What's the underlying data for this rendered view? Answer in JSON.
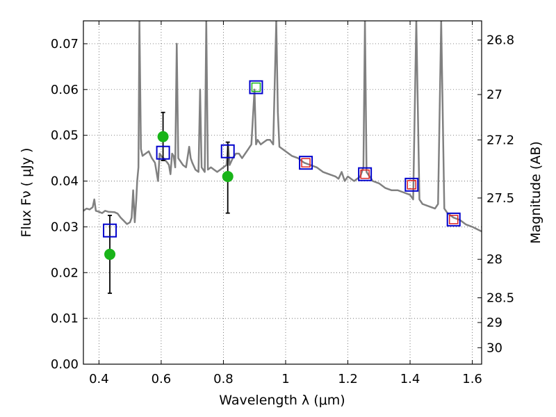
{
  "chart_data": {
    "type": "scatter",
    "xlabel": "Wavelength  λ (μm)",
    "ylabel": "Flux  Fν  ( μJy )",
    "ylabel_right": "Magnitude (AB)",
    "xlim": [
      0.35,
      1.63
    ],
    "ylim": [
      0.0,
      0.075
    ],
    "grid": true,
    "x_ticks": [
      0.4,
      0.6,
      0.8,
      1.0,
      1.2,
      1.4,
      1.6
    ],
    "x_tick_labels": [
      "0.4",
      "0.6",
      "0.8",
      "1",
      "1.2",
      "1.4",
      "1.6"
    ],
    "y_ticks": [
      0.0,
      0.01,
      0.02,
      0.03,
      0.04,
      0.05,
      0.06,
      0.07
    ],
    "y_tick_labels": [
      "0.00",
      "0.01",
      "0.02",
      "0.03",
      "0.04",
      "0.05",
      "0.06",
      "0.07"
    ],
    "mag_ticks": [
      {
        "label": "26.8",
        "flux": 0.0708
      },
      {
        "label": "27",
        "flux": 0.0589
      },
      {
        "label": "27.2",
        "flux": 0.049
      },
      {
        "label": "27.5",
        "flux": 0.0363
      },
      {
        "label": "28",
        "flux": 0.0229
      },
      {
        "label": "28.5",
        "flux": 0.0145
      },
      {
        "label": "29",
        "flux": 0.0091
      },
      {
        "label": "30",
        "flux": 0.0036
      }
    ],
    "series": [
      {
        "style": "line",
        "color": "#808080",
        "points": [
          [
            0.35,
            0.0335
          ],
          [
            0.36,
            0.034
          ],
          [
            0.37,
            0.0338
          ],
          [
            0.38,
            0.0343
          ],
          [
            0.385,
            0.036
          ],
          [
            0.39,
            0.0335
          ],
          [
            0.4,
            0.0333
          ],
          [
            0.41,
            0.033
          ],
          [
            0.42,
            0.0335
          ],
          [
            0.43,
            0.0333
          ],
          [
            0.45,
            0.0332
          ],
          [
            0.46,
            0.0329
          ],
          [
            0.47,
            0.032
          ],
          [
            0.48,
            0.0313
          ],
          [
            0.49,
            0.0306
          ],
          [
            0.5,
            0.031
          ],
          [
            0.505,
            0.032
          ],
          [
            0.51,
            0.038
          ],
          [
            0.515,
            0.031
          ],
          [
            0.52,
            0.036
          ],
          [
            0.523,
            0.04
          ],
          [
            0.527,
            0.043
          ],
          [
            0.53,
            0.076
          ],
          [
            0.535,
            0.047
          ],
          [
            0.54,
            0.0455
          ],
          [
            0.55,
            0.046
          ],
          [
            0.56,
            0.0465
          ],
          [
            0.57,
            0.045
          ],
          [
            0.58,
            0.044
          ],
          [
            0.585,
            0.042
          ],
          [
            0.59,
            0.04
          ],
          [
            0.595,
            0.046
          ],
          [
            0.6,
            0.0455
          ],
          [
            0.61,
            0.0448
          ],
          [
            0.62,
            0.044
          ],
          [
            0.625,
            0.0435
          ],
          [
            0.63,
            0.0415
          ],
          [
            0.635,
            0.046
          ],
          [
            0.64,
            0.0455
          ],
          [
            0.645,
            0.043
          ],
          [
            0.65,
            0.07
          ],
          [
            0.655,
            0.045
          ],
          [
            0.66,
            0.0445
          ],
          [
            0.67,
            0.0435
          ],
          [
            0.68,
            0.043
          ],
          [
            0.69,
            0.0475
          ],
          [
            0.695,
            0.045
          ],
          [
            0.7,
            0.044
          ],
          [
            0.71,
            0.0425
          ],
          [
            0.72,
            0.042
          ],
          [
            0.725,
            0.06
          ],
          [
            0.73,
            0.043
          ],
          [
            0.74,
            0.042
          ],
          [
            0.745,
            0.076
          ],
          [
            0.75,
            0.0425
          ],
          [
            0.76,
            0.043
          ],
          [
            0.77,
            0.0425
          ],
          [
            0.78,
            0.042
          ],
          [
            0.79,
            0.0425
          ],
          [
            0.8,
            0.043
          ],
          [
            0.81,
            0.0435
          ],
          [
            0.815,
            0.048
          ],
          [
            0.82,
            0.0435
          ],
          [
            0.83,
            0.045
          ],
          [
            0.84,
            0.046
          ],
          [
            0.85,
            0.046
          ],
          [
            0.86,
            0.045
          ],
          [
            0.87,
            0.046
          ],
          [
            0.88,
            0.047
          ],
          [
            0.89,
            0.048
          ],
          [
            0.9,
            0.06
          ],
          [
            0.905,
            0.048
          ],
          [
            0.91,
            0.049
          ],
          [
            0.92,
            0.048
          ],
          [
            0.93,
            0.0485
          ],
          [
            0.94,
            0.049
          ],
          [
            0.95,
            0.049
          ],
          [
            0.96,
            0.048
          ],
          [
            0.97,
            0.076
          ],
          [
            0.975,
            0.055
          ],
          [
            0.98,
            0.0475
          ],
          [
            1.0,
            0.0465
          ],
          [
            1.02,
            0.0455
          ],
          [
            1.04,
            0.045
          ],
          [
            1.06,
            0.044
          ],
          [
            1.08,
            0.0435
          ],
          [
            1.1,
            0.043
          ],
          [
            1.12,
            0.042
          ],
          [
            1.14,
            0.0415
          ],
          [
            1.16,
            0.041
          ],
          [
            1.17,
            0.0405
          ],
          [
            1.18,
            0.042
          ],
          [
            1.19,
            0.04
          ],
          [
            1.2,
            0.041
          ],
          [
            1.22,
            0.04
          ],
          [
            1.24,
            0.041
          ],
          [
            1.25,
            0.043
          ],
          [
            1.255,
            0.076
          ],
          [
            1.26,
            0.042
          ],
          [
            1.27,
            0.041
          ],
          [
            1.28,
            0.04
          ],
          [
            1.3,
            0.0395
          ],
          [
            1.32,
            0.0385
          ],
          [
            1.34,
            0.038
          ],
          [
            1.36,
            0.038
          ],
          [
            1.38,
            0.0375
          ],
          [
            1.4,
            0.037
          ],
          [
            1.41,
            0.036
          ],
          [
            1.42,
            0.076
          ],
          [
            1.43,
            0.036
          ],
          [
            1.44,
            0.035
          ],
          [
            1.46,
            0.0345
          ],
          [
            1.48,
            0.034
          ],
          [
            1.49,
            0.035
          ],
          [
            1.5,
            0.076
          ],
          [
            1.51,
            0.034
          ],
          [
            1.52,
            0.033
          ],
          [
            1.54,
            0.032
          ],
          [
            1.56,
            0.0315
          ],
          [
            1.58,
            0.0305
          ],
          [
            1.6,
            0.03
          ],
          [
            1.63,
            0.029
          ]
        ]
      },
      {
        "style": "errorbar",
        "color": "#000000",
        "points": [
          {
            "x": 0.435,
            "ylow": 0.0155,
            "yhigh": 0.0325
          },
          {
            "x": 0.606,
            "ylow": 0.0445,
            "yhigh": 0.055
          },
          {
            "x": 0.814,
            "ylow": 0.033,
            "yhigh": 0.0485
          }
        ]
      },
      {
        "style": "marker-circle",
        "color": "#19b419",
        "points": [
          [
            0.435,
            0.024
          ],
          [
            0.606,
            0.0497
          ],
          [
            0.814,
            0.041
          ]
        ]
      },
      {
        "style": "marker-square",
        "color": "#0000cc",
        "points": [
          [
            0.435,
            0.0292
          ],
          [
            0.606,
            0.0462
          ],
          [
            0.814,
            0.0465
          ],
          [
            0.905,
            0.0605
          ],
          [
            1.065,
            0.044
          ],
          [
            1.255,
            0.0415
          ],
          [
            1.405,
            0.0392
          ],
          [
            1.54,
            0.0316
          ]
        ]
      },
      {
        "style": "marker-square-small",
        "color": "#dd2222",
        "points": [
          [
            1.065,
            0.044
          ],
          [
            1.255,
            0.0415
          ],
          [
            1.405,
            0.0392
          ],
          [
            1.54,
            0.0316
          ]
        ]
      },
      {
        "style": "marker-square-small",
        "color": "#19b419",
        "points": [
          [
            0.905,
            0.0605
          ]
        ]
      }
    ]
  }
}
